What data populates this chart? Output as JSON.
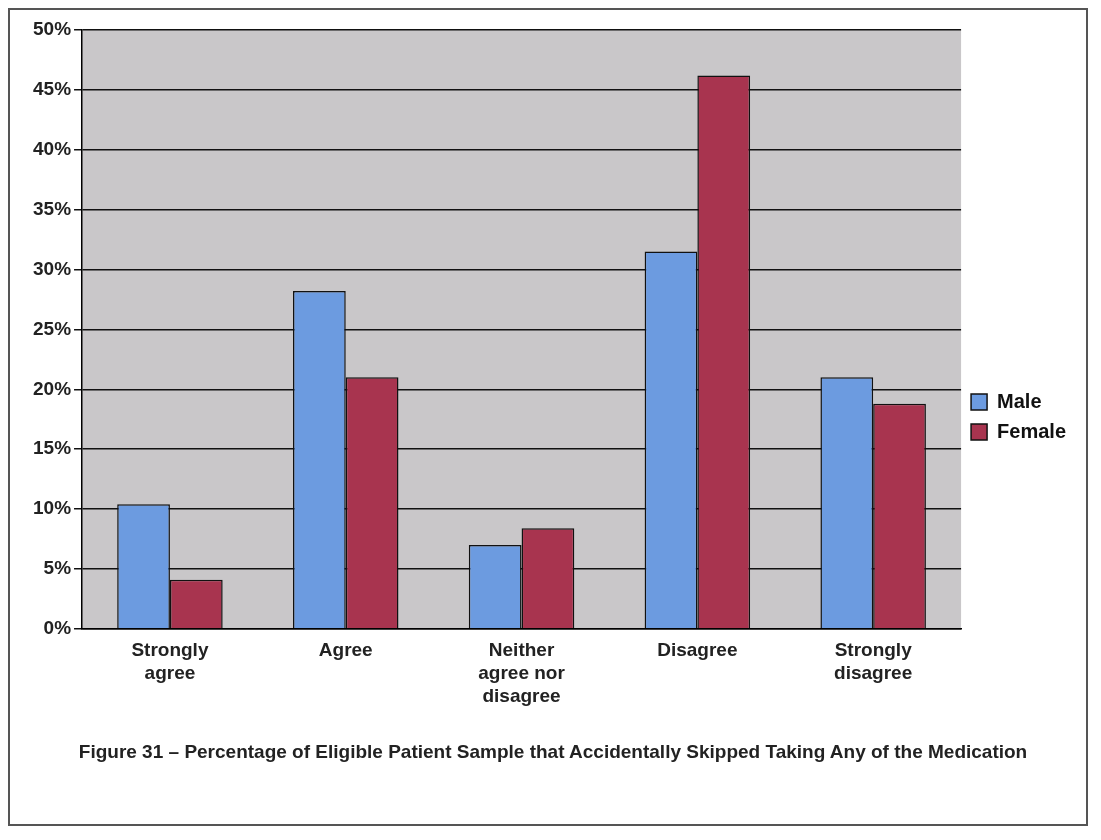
{
  "chart_data": {
    "type": "bar",
    "title": "Figure 31 – Percentage of Eligible Patient Sample that Accidentally Skipped Taking Any of the Medication",
    "categories": [
      "Strongly agree",
      "Agree",
      "Neither agree nor disagree",
      "Disagree",
      "Strongly disagree"
    ],
    "series": [
      {
        "name": "Male",
        "color": "#6c9be0",
        "values": [
          10.4,
          28.2,
          7.0,
          31.5,
          21.0
        ]
      },
      {
        "name": "Female",
        "color": "#a8344f",
        "values": [
          4.1,
          21.0,
          8.4,
          46.2,
          18.8
        ]
      }
    ],
    "ylim": [
      0,
      50
    ],
    "yticks": [
      {
        "value": 0,
        "label": "0%"
      },
      {
        "value": 5,
        "label": "5%"
      },
      {
        "value": 10,
        "label": "10%"
      },
      {
        "value": 15,
        "label": "15%"
      },
      {
        "value": 20,
        "label": "20%"
      },
      {
        "value": 25,
        "label": "25%"
      },
      {
        "value": 30,
        "label": "30%"
      },
      {
        "value": 35,
        "label": "35%"
      },
      {
        "value": 40,
        "label": "40%"
      },
      {
        "value": 45,
        "label": "45%"
      },
      {
        "value": 50,
        "label": "50%"
      }
    ],
    "grid": "y",
    "legend": "right"
  }
}
